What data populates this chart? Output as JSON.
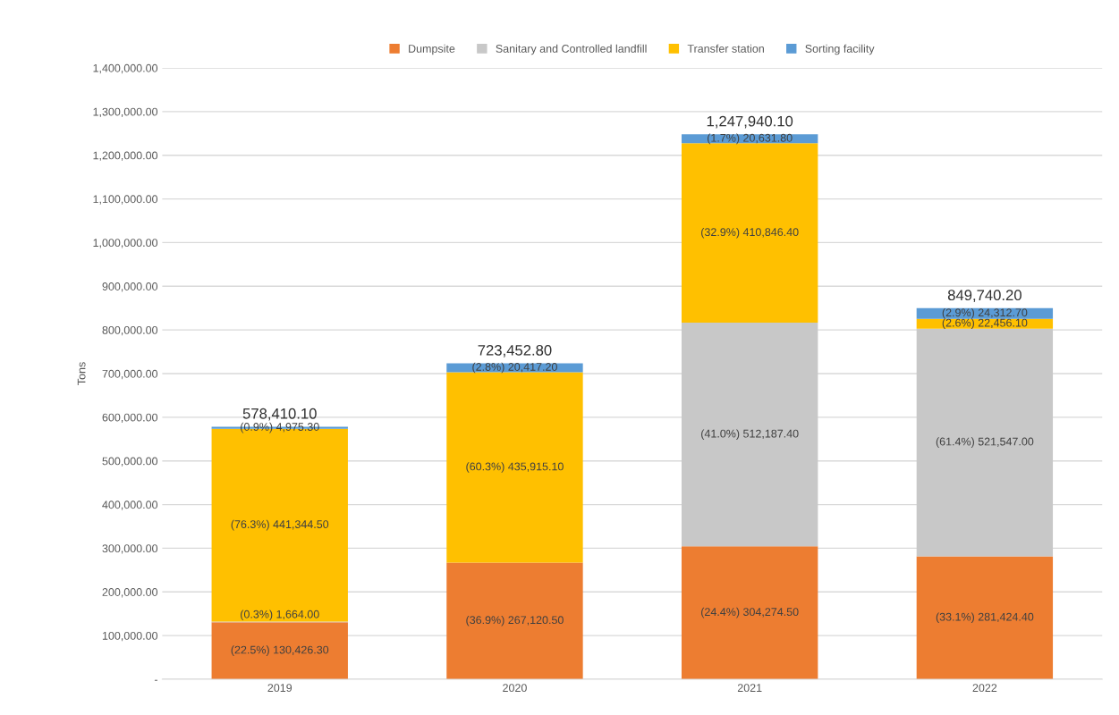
{
  "chart_data": {
    "type": "bar",
    "stacked": true,
    "ylabel": "Tons",
    "categories": [
      "2019",
      "2020",
      "2021",
      "2022"
    ],
    "series": [
      {
        "name": "Dumpsite",
        "color": "#ed7d31",
        "values": [
          130426.3,
          267120.5,
          304274.5,
          281424.4
        ],
        "value_labels": [
          "(22.5%) 130,426.30",
          "(36.9%) 267,120.50",
          "(24.4%) 304,274.50",
          "(33.1%) 281,424.40"
        ]
      },
      {
        "name": "Sanitary and Controlled landfill",
        "color": "#c8c8c8",
        "values": [
          1664.0,
          0,
          512187.4,
          521547.0
        ],
        "value_labels": [
          "(0.3%) 1,664.00",
          null,
          "(41.0%) 512,187.40",
          "(61.4%) 521,547.00"
        ]
      },
      {
        "name": "Transfer station",
        "color": "#ffc000",
        "values": [
          441344.5,
          435915.1,
          410846.4,
          22456.1
        ],
        "value_labels": [
          "(76.3%) 441,344.50",
          "(60.3%) 435,915.10",
          "(32.9%) 410,846.40",
          "(2.6%) 22,456.10"
        ]
      },
      {
        "name": "Sorting facility",
        "color": "#5b9bd5",
        "values": [
          4975.3,
          20417.2,
          20631.8,
          24312.7
        ],
        "value_labels": [
          "(0.9%) 4,975.30",
          "(2.8%) 20,417.20",
          "(1.7%) 20,631.80",
          "(2.9%) 24,312.70"
        ]
      }
    ],
    "totals": [
      "578,410.10",
      "723,452.80",
      "1,247,940.10",
      "849,740.20"
    ],
    "ylim": [
      0,
      1400000
    ],
    "yticks": [
      {
        "value": 0,
        "label": "-"
      },
      {
        "value": 100000,
        "label": "100,000.00"
      },
      {
        "value": 200000,
        "label": "200,000.00"
      },
      {
        "value": 300000,
        "label": "300,000.00"
      },
      {
        "value": 400000,
        "label": "400,000.00"
      },
      {
        "value": 500000,
        "label": "500,000.00"
      },
      {
        "value": 600000,
        "label": "600,000.00"
      },
      {
        "value": 700000,
        "label": "700,000.00"
      },
      {
        "value": 800000,
        "label": "800,000.00"
      },
      {
        "value": 900000,
        "label": "900,000.00"
      },
      {
        "value": 1000000,
        "label": "1,000,000.00"
      },
      {
        "value": 1100000,
        "label": "1,100,000.00"
      },
      {
        "value": 1200000,
        "label": "1,200,000.00"
      },
      {
        "value": 1300000,
        "label": "1,300,000.00"
      },
      {
        "value": 1400000,
        "label": "1,400,000.00"
      }
    ],
    "grid": "y",
    "legend": "top"
  }
}
